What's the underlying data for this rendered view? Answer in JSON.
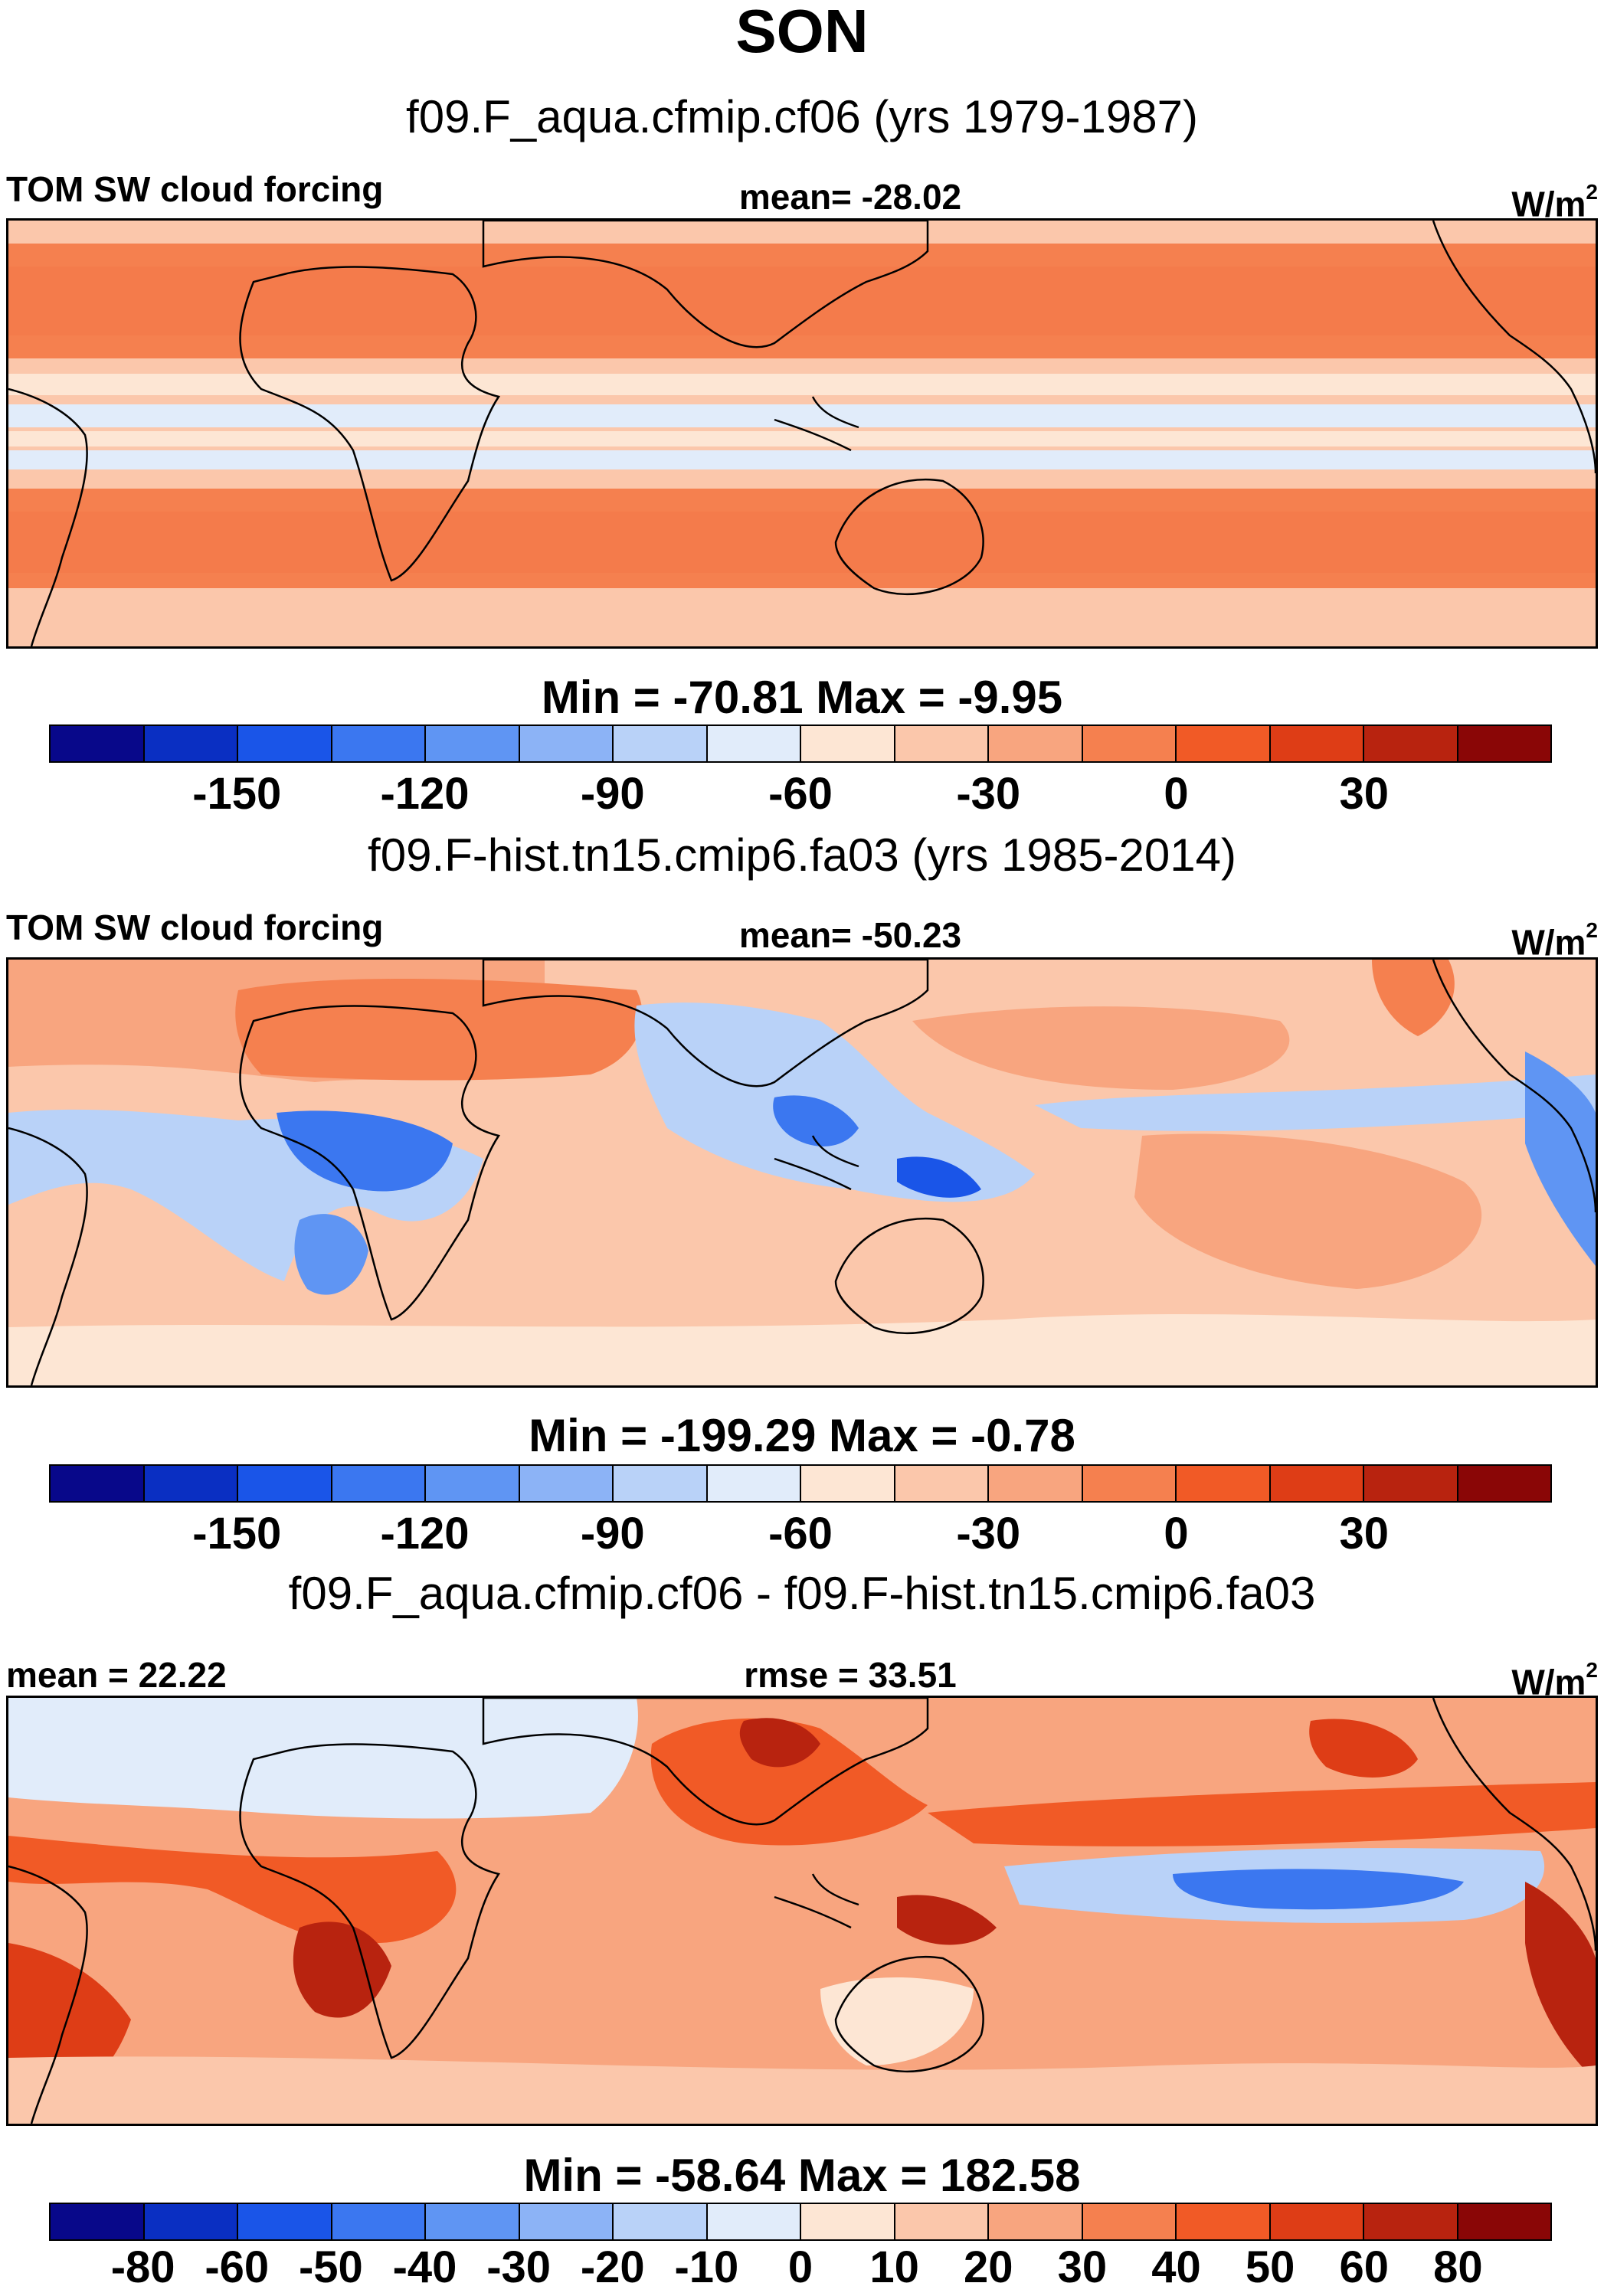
{
  "figure_title": "SON",
  "chart_data": [
    {
      "type": "heatmap",
      "title": "f09.F_aqua.cfmip.cf06 (yrs 1979-1987)",
      "left_label": "TOM SW cloud forcing",
      "center_label": "mean= -28.02",
      "units_base": "W/m",
      "units_exp": "2",
      "mean": -28.02,
      "min": -70.81,
      "max": -9.95,
      "minmax_text": "Min = -70.81 Max =  -9.95",
      "colorbar_colors": [
        "#08088a",
        "#0a2fc2",
        "#1a55e8",
        "#3b77f0",
        "#5f95f3",
        "#8cb3f6",
        "#b9d2f8",
        "#e1ecfa",
        "#fde6d4",
        "#fbc7ab",
        "#f8a57f",
        "#f5804f",
        "#f15a26",
        "#de3d16",
        "#b8230f",
        "#8a0606"
      ],
      "colorbar_ticks": [
        "-150",
        "-120",
        "-90",
        "-60",
        "-30",
        "0",
        "30"
      ],
      "colorbar_tick_boundaries": [
        2,
        4,
        6,
        8,
        10,
        12,
        14
      ]
    },
    {
      "type": "heatmap",
      "title": "f09.F-hist.tn15.cmip6.fa03 (yrs 1985-2014)",
      "left_label": "TOM SW cloud forcing",
      "center_label": "mean= -50.23",
      "units_base": "W/m",
      "units_exp": "2",
      "mean": -50.23,
      "min": -199.29,
      "max": -0.78,
      "minmax_text": "Min = -199.29 Max =  -0.78",
      "colorbar_colors": [
        "#08088a",
        "#0a2fc2",
        "#1a55e8",
        "#3b77f0",
        "#5f95f3",
        "#8cb3f6",
        "#b9d2f8",
        "#e1ecfa",
        "#fde6d4",
        "#fbc7ab",
        "#f8a57f",
        "#f5804f",
        "#f15a26",
        "#de3d16",
        "#b8230f",
        "#8a0606"
      ],
      "colorbar_ticks": [
        "-150",
        "-120",
        "-90",
        "-60",
        "-30",
        "0",
        "30"
      ],
      "colorbar_tick_boundaries": [
        2,
        4,
        6,
        8,
        10,
        12,
        14
      ]
    },
    {
      "type": "heatmap",
      "title": "f09.F_aqua.cfmip.cf06 - f09.F-hist.tn15.cmip6.fa03",
      "left_label": "mean =  22.22",
      "center_label": "rmse =  33.51",
      "units_base": "W/m",
      "units_exp": "2",
      "mean": 22.22,
      "rmse": 33.51,
      "min": -58.64,
      "max": 182.58,
      "minmax_text": "Min = -58.64 Max = 182.58",
      "colorbar_colors": [
        "#08088a",
        "#0a2fc2",
        "#1a55e8",
        "#3b77f0",
        "#5f95f3",
        "#8cb3f6",
        "#b9d2f8",
        "#e1ecfa",
        "#fde6d4",
        "#fbc7ab",
        "#f8a57f",
        "#f5804f",
        "#f15a26",
        "#de3d16",
        "#b8230f",
        "#8a0606"
      ],
      "colorbar_ticks": [
        "-80",
        "-60",
        "-50",
        "-40",
        "-30",
        "-20",
        "-10",
        "0",
        "10",
        "20",
        "30",
        "40",
        "50",
        "60",
        "80"
      ],
      "colorbar_tick_boundaries": [
        1,
        2,
        3,
        4,
        5,
        6,
        7,
        8,
        9,
        10,
        11,
        12,
        13,
        14,
        15
      ]
    }
  ]
}
